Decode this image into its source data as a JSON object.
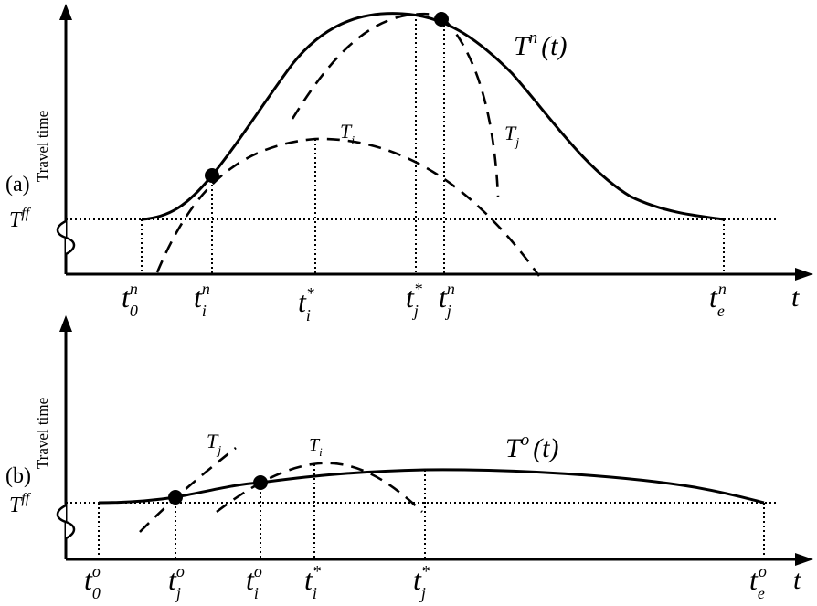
{
  "panel_a": {
    "panel_label": "(a)",
    "y_axis_label": "Travel time",
    "tff_label": {
      "base": "T",
      "sup": "ff"
    },
    "x_axis_var": "t",
    "curve_label": {
      "base": "T",
      "sup": "n",
      "arg": "(t)"
    },
    "dashed_labels": [
      {
        "base": "T",
        "sub": "i"
      },
      {
        "base": "T",
        "sub": "j"
      }
    ],
    "tick_labels": [
      {
        "base": "t",
        "sub": "0",
        "sup": "n"
      },
      {
        "base": "t",
        "sub": "i",
        "sup": "n"
      },
      {
        "base": "t",
        "sub": "i",
        "sup": "*"
      },
      {
        "base": "t",
        "sub": "j",
        "sup": "*"
      },
      {
        "base": "t",
        "sub": "j",
        "sup": "n"
      },
      {
        "base": "t",
        "sub": "e",
        "sup": "n"
      }
    ]
  },
  "panel_b": {
    "panel_label": "(b)",
    "y_axis_label": "Travel time",
    "tff_label": {
      "base": "T",
      "sup": "ff"
    },
    "x_axis_var": "t",
    "curve_label": {
      "base": "T",
      "sup": "o",
      "arg": "(t)"
    },
    "dashed_labels": [
      {
        "base": "T",
        "sub": "j"
      },
      {
        "base": "T",
        "sub": "i"
      }
    ],
    "tick_labels": [
      {
        "base": "t",
        "sub": "0",
        "sup": "o"
      },
      {
        "base": "t",
        "sub": "j",
        "sup": "o"
      },
      {
        "base": "t",
        "sub": "i",
        "sup": "o"
      },
      {
        "base": "t",
        "sub": "i",
        "sup": "*"
      },
      {
        "base": "t",
        "sub": "j",
        "sup": "*"
      },
      {
        "base": "t",
        "sub": "e",
        "sup": "o"
      }
    ]
  }
}
